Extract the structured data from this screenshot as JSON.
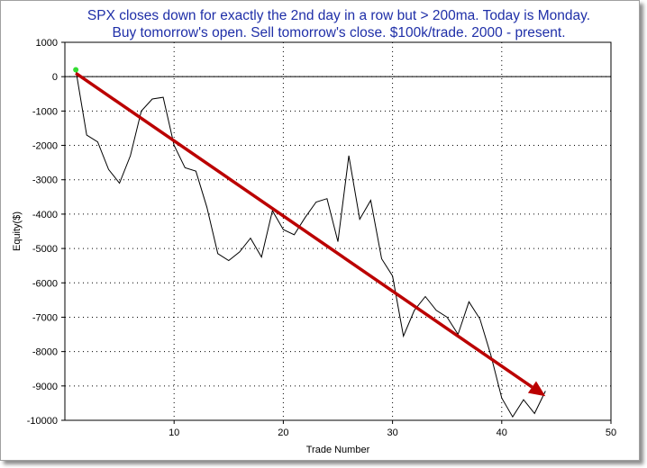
{
  "chart_data": {
    "type": "line",
    "title_line1": "SPX closes down for exactly the 2nd day in a row but > 200ma.  Today is Monday.",
    "title_line2": "Buy tomorrow's open. Sell tomorrow's close. $100k/trade. 2000 - present.",
    "xlabel": "Trade Number",
    "ylabel": "Equity($)",
    "xlim": [
      0,
      50
    ],
    "ylim": [
      -10000,
      1000
    ],
    "x_ticks": [
      10,
      20,
      30,
      40,
      50
    ],
    "y_ticks": [
      1000,
      0,
      -1000,
      -2000,
      -3000,
      -4000,
      -5000,
      -6000,
      -7000,
      -8000,
      -9000,
      -10000
    ],
    "grid": true,
    "series": [
      {
        "color": "#000000",
        "x": [
          1,
          2,
          3,
          4,
          5,
          6,
          7,
          8,
          9,
          10,
          11,
          12,
          13,
          14,
          15,
          16,
          17,
          18,
          19,
          20,
          21,
          22,
          23,
          24,
          25,
          26,
          27,
          28,
          29,
          30,
          31,
          32,
          33,
          34,
          35,
          36,
          37,
          38,
          39,
          40,
          41,
          42,
          43,
          44
        ],
        "values": [
          200,
          -1700,
          -1900,
          -2700,
          -3100,
          -2300,
          -1000,
          -650,
          -600,
          -2000,
          -2650,
          -2750,
          -3800,
          -5150,
          -5350,
          -5100,
          -4700,
          -5250,
          -3900,
          -4450,
          -4600,
          -4100,
          -3650,
          -3550,
          -4800,
          -2300,
          -4150,
          -3600,
          -5300,
          -5800,
          -7550,
          -6800,
          -6400,
          -6800,
          -7000,
          -7500,
          -6550,
          -7050,
          -8100,
          -9350,
          -9900,
          -9400,
          -9800,
          -9150
        ]
      }
    ],
    "start_marker": {
      "x": 1,
      "y": 200,
      "color": "#33dd33"
    },
    "trend_arrow": {
      "from": [
        1,
        100
      ],
      "to": [
        44,
        -9300
      ],
      "color": "#bb0000"
    }
  }
}
